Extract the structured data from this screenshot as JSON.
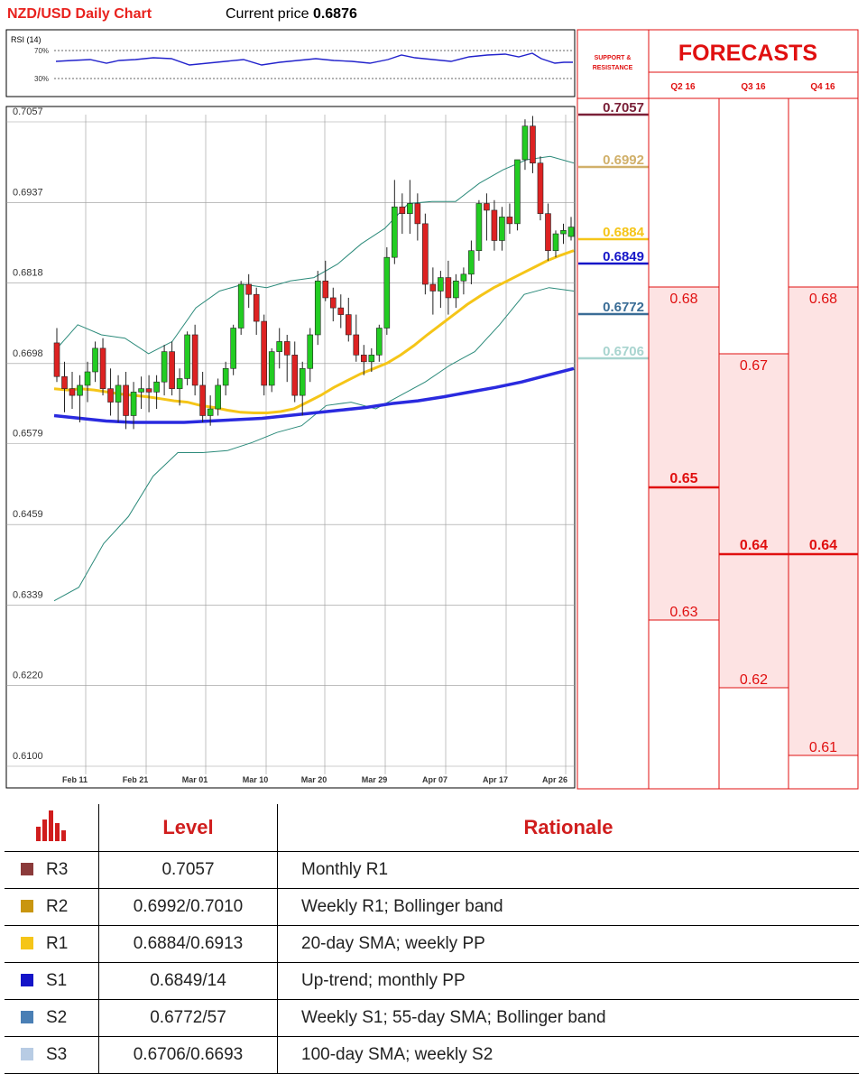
{
  "header": {
    "title": "NZD/USD Daily Chart",
    "price_label": "Current price",
    "price_value": "0.6876"
  },
  "rsi": {
    "label": "RSI (14)",
    "upper": "70%",
    "lower": "30%"
  },
  "sr_header": {
    "line1": "SUPPORT &",
    "line2": "RESISTANCE"
  },
  "forecast": {
    "title": "FORECASTS",
    "quarters": [
      "Q2 16",
      "Q3 16",
      "Q4 16"
    ]
  },
  "colors": {
    "bull": "#22cc22",
    "bear": "#dd2222",
    "sma20": "#f5c518",
    "sma100": "#2a2adf",
    "bollinger": "#2b8a7a",
    "r3": "#7a2038",
    "r2": "#d1b06a",
    "r1": "#f5c518",
    "s1": "#1616c8",
    "s2": "#3a6d96",
    "s3": "#a8d4cf",
    "forecast_red": "#e01010",
    "forecast_fill": "#fde3e3"
  },
  "chart_data": {
    "type": "candlestick",
    "title": "NZD/USD Daily Chart",
    "ylim": [
      0.61,
      0.7057
    ],
    "y_ticks": [
      "0.7057",
      "0.6937",
      "0.6818",
      "0.6698",
      "0.6579",
      "0.6459",
      "0.6339",
      "0.6220",
      "0.6100"
    ],
    "x_ticks": [
      "Feb 11",
      "Feb 21",
      "Mar 01",
      "Mar 10",
      "Mar 20",
      "Mar 29",
      "Apr 07",
      "Apr 17",
      "Apr 26"
    ],
    "candles": [
      [
        0.6718,
        0.674,
        0.666,
        0.6668
      ],
      [
        0.6668,
        0.669,
        0.6615,
        0.665
      ],
      [
        0.665,
        0.6675,
        0.662,
        0.664
      ],
      [
        0.664,
        0.667,
        0.66,
        0.6655
      ],
      [
        0.6655,
        0.669,
        0.663,
        0.6675
      ],
      [
        0.6675,
        0.672,
        0.666,
        0.671
      ],
      [
        0.671,
        0.6725,
        0.664,
        0.665
      ],
      [
        0.665,
        0.668,
        0.661,
        0.663
      ],
      [
        0.663,
        0.667,
        0.66,
        0.6655
      ],
      [
        0.6655,
        0.6675,
        0.659,
        0.661
      ],
      [
        0.661,
        0.666,
        0.659,
        0.6645
      ],
      [
        0.6645,
        0.6668,
        0.662,
        0.665
      ],
      [
        0.665,
        0.667,
        0.6615,
        0.6645
      ],
      [
        0.6645,
        0.667,
        0.662,
        0.666
      ],
      [
        0.666,
        0.6715,
        0.664,
        0.6705
      ],
      [
        0.6705,
        0.672,
        0.664,
        0.665
      ],
      [
        0.665,
        0.668,
        0.6625,
        0.6665
      ],
      [
        0.6665,
        0.6735,
        0.6655,
        0.673
      ],
      [
        0.673,
        0.6745,
        0.664,
        0.6655
      ],
      [
        0.6655,
        0.6675,
        0.66,
        0.661
      ],
      [
        0.661,
        0.664,
        0.6595,
        0.662
      ],
      [
        0.662,
        0.6665,
        0.661,
        0.6655
      ],
      [
        0.6655,
        0.669,
        0.664,
        0.668
      ],
      [
        0.668,
        0.6745,
        0.667,
        0.674
      ],
      [
        0.674,
        0.681,
        0.673,
        0.6805
      ],
      [
        0.6805,
        0.682,
        0.677,
        0.679
      ],
      [
        0.679,
        0.68,
        0.673,
        0.675
      ],
      [
        0.675,
        0.676,
        0.664,
        0.6655
      ],
      [
        0.6655,
        0.671,
        0.6645,
        0.6705
      ],
      [
        0.6705,
        0.674,
        0.668,
        0.672
      ],
      [
        0.672,
        0.673,
        0.666,
        0.67
      ],
      [
        0.67,
        0.672,
        0.663,
        0.664
      ],
      [
        0.664,
        0.669,
        0.661,
        0.668
      ],
      [
        0.668,
        0.674,
        0.666,
        0.673
      ],
      [
        0.673,
        0.6825,
        0.6715,
        0.681
      ],
      [
        0.681,
        0.684,
        0.678,
        0.6785
      ],
      [
        0.6785,
        0.68,
        0.675,
        0.677
      ],
      [
        0.677,
        0.679,
        0.674,
        0.676
      ],
      [
        0.676,
        0.6785,
        0.672,
        0.673
      ],
      [
        0.673,
        0.676,
        0.669,
        0.67
      ],
      [
        0.67,
        0.6715,
        0.667,
        0.669
      ],
      [
        0.669,
        0.671,
        0.6675,
        0.67
      ],
      [
        0.67,
        0.6745,
        0.669,
        0.674
      ],
      [
        0.674,
        0.686,
        0.673,
        0.6845
      ],
      [
        0.6845,
        0.696,
        0.6835,
        0.692
      ],
      [
        0.692,
        0.694,
        0.688,
        0.691
      ],
      [
        0.691,
        0.696,
        0.688,
        0.6925
      ],
      [
        0.6925,
        0.694,
        0.687,
        0.6895
      ],
      [
        0.6895,
        0.691,
        0.679,
        0.6805
      ],
      [
        0.6805,
        0.683,
        0.676,
        0.6795
      ],
      [
        0.6795,
        0.6825,
        0.677,
        0.6815
      ],
      [
        0.6815,
        0.684,
        0.676,
        0.6785
      ],
      [
        0.6785,
        0.682,
        0.677,
        0.681
      ],
      [
        0.681,
        0.683,
        0.679,
        0.682
      ],
      [
        0.682,
        0.687,
        0.6805,
        0.6855
      ],
      [
        0.6855,
        0.693,
        0.684,
        0.6925
      ],
      [
        0.6925,
        0.694,
        0.687,
        0.6915
      ],
      [
        0.6915,
        0.693,
        0.6855,
        0.687
      ],
      [
        0.687,
        0.692,
        0.6855,
        0.6905
      ],
      [
        0.6905,
        0.6925,
        0.688,
        0.6895
      ],
      [
        0.6895,
        0.699,
        0.6885,
        0.699
      ],
      [
        0.699,
        0.705,
        0.6975,
        0.704
      ],
      [
        0.704,
        0.7055,
        0.697,
        0.6985
      ],
      [
        0.6985,
        0.6995,
        0.69,
        0.691
      ],
      [
        0.691,
        0.6925,
        0.684,
        0.6855
      ],
      [
        0.6855,
        0.6885,
        0.6845,
        0.688
      ],
      [
        0.688,
        0.6895,
        0.6865,
        0.6885
      ],
      [
        0.6876,
        0.6905,
        0.687,
        0.689
      ]
    ],
    "series": [
      {
        "name": "SMA 20",
        "values": [
          0.665,
          0.6648,
          0.665,
          0.6648,
          0.6645,
          0.6642,
          0.664,
          0.6638,
          0.6635,
          0.6632,
          0.663,
          0.6625,
          0.6622,
          0.6618,
          0.6615,
          0.6614,
          0.6614,
          0.6616,
          0.662,
          0.663,
          0.664,
          0.6652,
          0.6662,
          0.6672,
          0.668,
          0.6688,
          0.67,
          0.6714,
          0.673,
          0.6745,
          0.676,
          0.6775,
          0.6788,
          0.68,
          0.681,
          0.682,
          0.683,
          0.684,
          0.6848,
          0.6855
        ]
      },
      {
        "name": "SMA 100",
        "values": [
          0.661,
          0.6606,
          0.6602,
          0.66,
          0.66,
          0.66,
          0.6602,
          0.6604,
          0.6606,
          0.661,
          0.6614,
          0.6618,
          0.6622,
          0.6628,
          0.6632,
          0.6638,
          0.6645,
          0.6652,
          0.666,
          0.667,
          0.668
        ]
      },
      {
        "name": "Bollinger upper",
        "values": [
          0.6705,
          0.6745,
          0.673,
          0.6725,
          0.6702,
          0.672,
          0.677,
          0.6795,
          0.6805,
          0.68,
          0.681,
          0.6815,
          0.6835,
          0.6865,
          0.6888,
          0.6925,
          0.6928,
          0.6928,
          0.6955,
          0.6975,
          0.699,
          0.6995,
          0.6985
        ]
      },
      {
        "name": "Bollinger lower",
        "values": [
          0.6335,
          0.6355,
          0.642,
          0.646,
          0.652,
          0.6555,
          0.6555,
          0.6558,
          0.657,
          0.6585,
          0.6595,
          0.6625,
          0.663,
          0.662,
          0.664,
          0.666,
          0.6685,
          0.6705,
          0.6745,
          0.679,
          0.68,
          0.6795
        ]
      }
    ],
    "support_resistance": [
      {
        "label": "0.7057",
        "value": 0.7057,
        "color_key": "r3"
      },
      {
        "label": "0.6992",
        "value": 0.6992,
        "color_key": "r2"
      },
      {
        "label": "0.6884",
        "value": 0.6884,
        "color_key": "r1"
      },
      {
        "label": "0.6849",
        "value": 0.6849,
        "color_key": "s1"
      },
      {
        "label": "0.6772",
        "value": 0.6772,
        "color_key": "s2"
      },
      {
        "label": "0.6706",
        "value": 0.6706,
        "color_key": "s3"
      }
    ],
    "forecasts": [
      {
        "quarter": "Q2 16",
        "high": "0.68",
        "mid": "0.65",
        "low": "0.63",
        "high_v": 0.68,
        "mid_v": 0.65,
        "low_v": 0.63
      },
      {
        "quarter": "Q3 16",
        "high": "0.67",
        "mid": "0.64",
        "low": "0.62",
        "high_v": 0.67,
        "mid_v": 0.64,
        "low_v": 0.62
      },
      {
        "quarter": "Q4 16",
        "high": "0.68",
        "mid": "0.64",
        "low": "0.61",
        "high_v": 0.68,
        "mid_v": 0.64,
        "low_v": 0.61
      }
    ]
  },
  "levels_table": {
    "headers": {
      "level": "Level",
      "rationale": "Rationale"
    },
    "rows": [
      {
        "name": "R3",
        "level": "0.7057",
        "rationale": "Monthly R1",
        "color": "#8b3a3a"
      },
      {
        "name": "R2",
        "level": "0.6992/0.7010",
        "rationale": "Weekly R1; Bollinger band",
        "color": "#c9960f"
      },
      {
        "name": "R1",
        "level": "0.6884/0.6913",
        "rationale": "20-day SMA; weekly PP",
        "color": "#f5c518"
      },
      {
        "name": "S1",
        "level": "0.6849/14",
        "rationale": "Up-trend; monthly PP",
        "color": "#1414c8"
      },
      {
        "name": "S2",
        "level": "0.6772/57",
        "rationale": "Weekly S1; 55-day SMA; Bollinger band",
        "color": "#4a7fb5"
      },
      {
        "name": "S3",
        "level": "0.6706/0.6693",
        "rationale": "100-day SMA; weekly S2",
        "color": "#b8cce4"
      }
    ]
  }
}
